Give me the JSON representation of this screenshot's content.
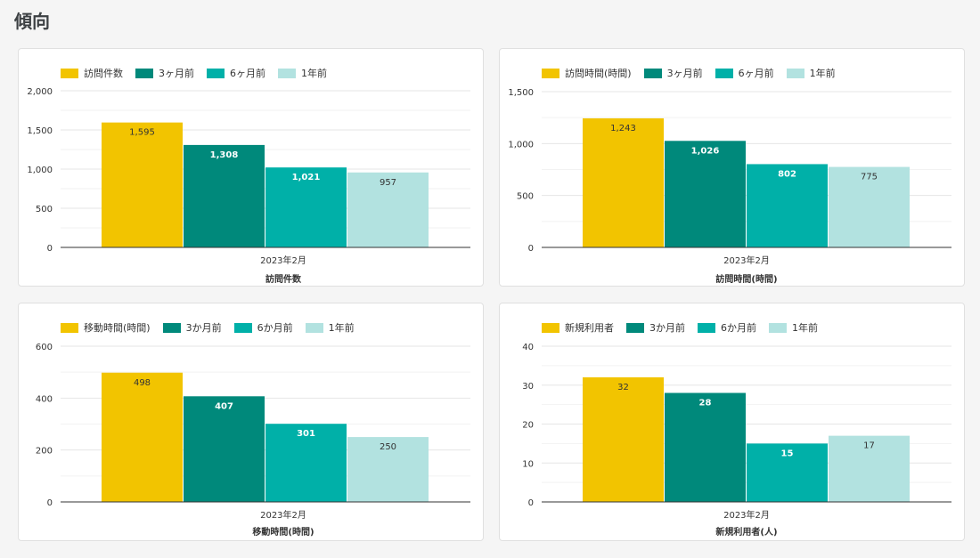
{
  "page": {
    "title": "傾向"
  },
  "colors": {
    "current": "#f2c400",
    "m3": "#00897b",
    "m6": "#00b0a8",
    "y1": "#b2e2e0"
  },
  "chart_data": [
    {
      "type": "bar",
      "categories": [
        "2023年2月"
      ],
      "series": [
        {
          "name": "訪問件数",
          "values": [
            1595
          ],
          "label": "1,595"
        },
        {
          "name": "3ヶ月前",
          "values": [
            1308
          ],
          "label": "1,308"
        },
        {
          "name": "6ヶ月前",
          "values": [
            1021
          ],
          "label": "1,021"
        },
        {
          "name": "1年前",
          "values": [
            957
          ],
          "label": "957"
        }
      ],
      "xlabel": "訪問件数",
      "ylim": [
        0,
        2000
      ],
      "yticks": [
        0,
        500,
        1000,
        1500,
        2000
      ],
      "ytick_labels": [
        "0",
        "500",
        "1,000",
        "1,500",
        "2,000"
      ],
      "legend": "top-left",
      "grid": true
    },
    {
      "type": "bar",
      "categories": [
        "2023年2月"
      ],
      "series": [
        {
          "name": "訪問時間(時間)",
          "values": [
            1243
          ],
          "label": "1,243"
        },
        {
          "name": "3ヶ月前",
          "values": [
            1026
          ],
          "label": "1,026"
        },
        {
          "name": "6ヶ月前",
          "values": [
            802
          ],
          "label": "802"
        },
        {
          "name": "1年前",
          "values": [
            775
          ],
          "label": "775"
        }
      ],
      "xlabel": "訪問時間(時間)",
      "ylim": [
        0,
        1500
      ],
      "yticks": [
        0,
        500,
        1000,
        1500
      ],
      "ytick_labels": [
        "0",
        "500",
        "1,000",
        "1,500"
      ],
      "legend": "top-left",
      "grid": true
    },
    {
      "type": "bar",
      "categories": [
        "2023年2月"
      ],
      "series": [
        {
          "name": "移動時間(時間)",
          "values": [
            498
          ],
          "label": "498"
        },
        {
          "name": "3か月前",
          "values": [
            407
          ],
          "label": "407"
        },
        {
          "name": "6か月前",
          "values": [
            301
          ],
          "label": "301"
        },
        {
          "name": "1年前",
          "values": [
            250
          ],
          "label": "250"
        }
      ],
      "xlabel": "移動時間(時間)",
      "ylim": [
        0,
        600
      ],
      "yticks": [
        0,
        200,
        400,
        600
      ],
      "ytick_labels": [
        "0",
        "200",
        "400",
        "600"
      ],
      "legend": "top-left",
      "grid": true
    },
    {
      "type": "bar",
      "categories": [
        "2023年2月"
      ],
      "series": [
        {
          "name": "新規利用者",
          "values": [
            32
          ],
          "label": "32"
        },
        {
          "name": "3か月前",
          "values": [
            28
          ],
          "label": "28"
        },
        {
          "name": "6か月前",
          "values": [
            15
          ],
          "label": "15"
        },
        {
          "name": "1年前",
          "values": [
            17
          ],
          "label": "17"
        }
      ],
      "xlabel": "新規利用者(人)",
      "ylim": [
        0,
        40
      ],
      "yticks": [
        0,
        10,
        20,
        30,
        40
      ],
      "ytick_labels": [
        "0",
        "10",
        "20",
        "30",
        "40"
      ],
      "legend": "top-left",
      "grid": true
    }
  ]
}
